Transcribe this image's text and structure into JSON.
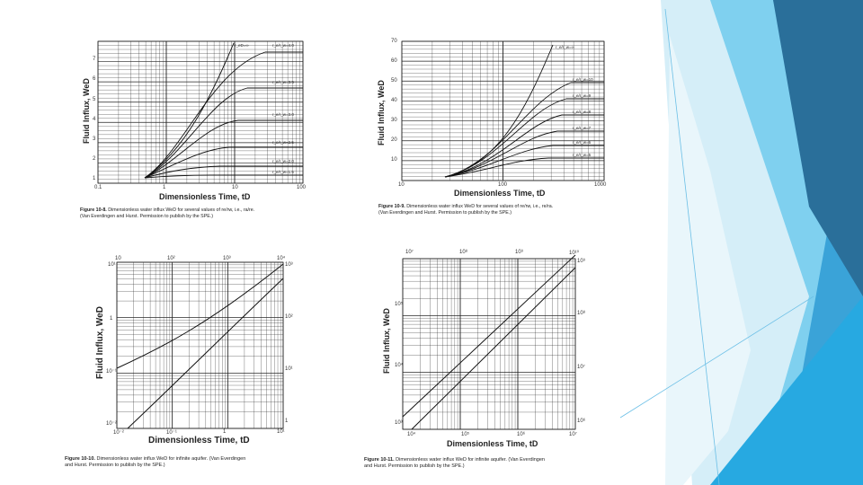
{
  "colors": {
    "grid": "#222222",
    "curve": "#111111",
    "teal_dark": "#2a6f9a",
    "teal_mid": "#3aa3d8",
    "teal_light": "#7fd0ef",
    "teal_pale": "#bfe7f6"
  },
  "figures": [
    {
      "ylabel": "Fluid Influx, WeD",
      "xlabel": "Dimensionless Time, tD",
      "yticks": [
        "7",
        "6",
        "5",
        "4",
        "3",
        "2",
        "1"
      ],
      "xticks": [
        "0.1",
        "1",
        "10",
        "100"
      ],
      "curve_labels": [
        "r_eD=∞",
        "r_e/r_w=4.0",
        "r_e/r_w=3.5",
        "r_e/r_w=3.0",
        "r_e/r_w=2.5",
        "r_e/r_w=2.0",
        "r_e/r_w=1.5"
      ],
      "caption_fig": "Figure 10-8.",
      "caption_text": "Dimensionless water influx WeD for several values of re/rw, i.e., ra/re.",
      "caption_source": "(Van Everdingen and Hurst. Permission to publish by the SPE.)"
    },
    {
      "ylabel": "Fluid Influx, WeD",
      "xlabel": "Dimensionless Time, tD",
      "yticks": [
        "70",
        "60",
        "50",
        "40",
        "30",
        "20",
        "10"
      ],
      "xticks": [
        "10",
        "100",
        "1000"
      ],
      "curve_labels": [
        "r_e/r_w=∞",
        "r_e/r_w=10",
        "r_e/r_w=9",
        "r_e/r_w=8",
        "r_e/r_w=7",
        "r_e/r_w=6",
        "r_e/r_w=5"
      ],
      "caption_fig": "Figure 10-9.",
      "caption_text": "Dimensionless water influx WeD for several values of re/rw, i.e., re/ra.",
      "caption_source": "(Van Everdingen and Hurst. Permission to publish by the SPE.)"
    },
    {
      "ylabel": "Fluid Influx, WeD",
      "xlabel": "Dimensionless Time, tD",
      "top_ticks": [
        "10",
        "10²",
        "10³",
        "10⁴"
      ],
      "bottom_ticks": [
        "10⁻²",
        "10⁻¹",
        "1",
        "10¹"
      ],
      "left_ticks": [
        "10¹",
        "1",
        "10⁻¹",
        "10⁻²"
      ],
      "right_ticks": [
        "10³",
        "10²",
        "10¹",
        "1"
      ],
      "caption_fig": "Figure 10-10.",
      "caption_text": "Dimensionless water influx WeD for infinite aquifer. (Van Everdingen",
      "caption_source": "and Hurst. Permission to publish by the SPE.)"
    },
    {
      "ylabel": "Fluid Influx, WeD",
      "xlabel": "Dimensionless Time, tD",
      "top_ticks": [
        "10⁷",
        "10⁸",
        "10⁹",
        "10¹⁰"
      ],
      "bottom_ticks": [
        "10⁴",
        "10⁵",
        "10⁶",
        "10⁷"
      ],
      "left_ticks": [
        "10⁵",
        "10⁴",
        "10³"
      ],
      "right_ticks": [
        "10⁹",
        "10⁸",
        "10⁷",
        "10⁶"
      ],
      "caption_fig": "Figure 10-11.",
      "caption_text": "Dimensionless water influx WeD for infinite aquifer. (Van Everdingen",
      "caption_source": "and Hurst. Permission to publish by the SPE.)"
    }
  ]
}
